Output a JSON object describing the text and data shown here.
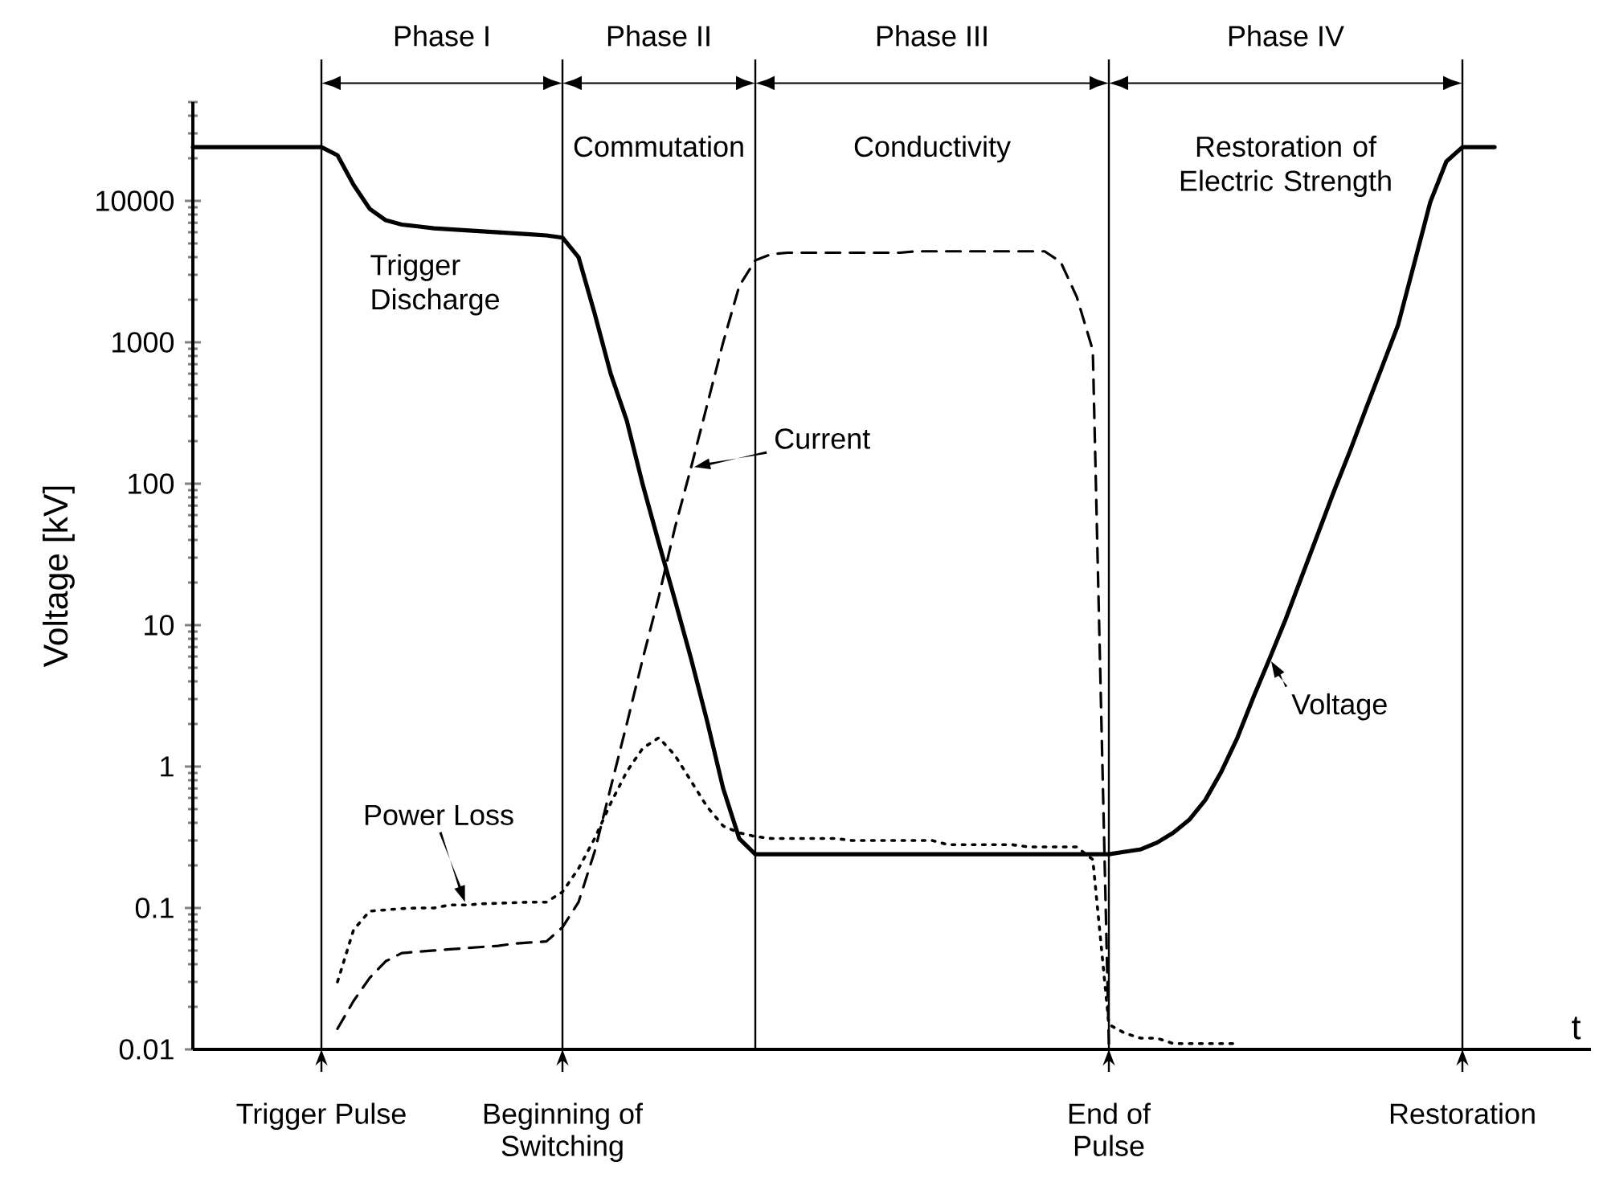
{
  "chart_data": {
    "type": "line",
    "ylabel": "Voltage [kV]",
    "xlabel": "t",
    "log": "y",
    "ylim": [
      0.01,
      50000
    ],
    "yticks": [
      0.01,
      0.1,
      1,
      10,
      100,
      1000,
      10000
    ],
    "categories": [
      null,
      null,
      null,
      null,
      null,
      null,
      null,
      null,
      "Trigger Pulse",
      null,
      null,
      null,
      null,
      null,
      null,
      null,
      null,
      null,
      null,
      null,
      null,
      null,
      null,
      "Beginning of Switching",
      null,
      null,
      null,
      null,
      null,
      null,
      null,
      null,
      null,
      null,
      null,
      null,
      null,
      null,
      null,
      null,
      null,
      null,
      null,
      null,
      null,
      null,
      null,
      null,
      null,
      null,
      null,
      null,
      null,
      null,
      null,
      null,
      null,
      "End of Pulse",
      null,
      null,
      null,
      null,
      null,
      null,
      null,
      null,
      null,
      null,
      null,
      null,
      null,
      null,
      null,
      null,
      null,
      null,
      null,
      null,
      null,
      "Restoration",
      null,
      null,
      null,
      null,
      null,
      null,
      null,
      null
    ],
    "annotations": [
      "Phase I",
      "Phase II",
      "Phase III",
      "Phase IV",
      "Commutation",
      "Conductivity",
      "Restoration of Electric Strength",
      "Trigger Discharge"
    ],
    "series": [
      {
        "name": "Voltage",
        "color": "#000000",
        "line_style": "solid",
        "values": [
          24000,
          24000,
          24000,
          24000,
          24000,
          24000,
          24000,
          24000,
          24000,
          21000,
          13000,
          8800,
          7300,
          6800,
          6600,
          6400,
          6300,
          6200,
          6100,
          6000,
          5900,
          5800,
          5700,
          5500,
          4000,
          1600,
          600,
          280,
          98,
          38,
          15,
          5.8,
          2.1,
          0.7,
          0.31,
          0.24,
          0.24,
          0.24,
          0.24,
          0.24,
          0.24,
          0.24,
          0.24,
          0.24,
          0.24,
          0.24,
          0.24,
          0.24,
          0.24,
          0.24,
          0.24,
          0.24,
          0.24,
          0.24,
          0.24,
          0.24,
          0.24,
          0.24,
          0.25,
          0.26,
          0.29,
          0.34,
          0.42,
          0.58,
          0.92,
          1.6,
          3.1,
          5.8,
          11,
          22,
          44,
          88,
          170,
          340,
          670,
          1330,
          3600,
          9800,
          19000,
          24000,
          24000,
          24000,
          null,
          null,
          null,
          null,
          null,
          null
        ]
      },
      {
        "name": "Current",
        "color": "#000000",
        "line_style": "dashed",
        "values": [
          null,
          null,
          null,
          null,
          null,
          null,
          null,
          null,
          null,
          0.014,
          0.022,
          0.032,
          0.042,
          0.048,
          0.049,
          0.05,
          0.051,
          0.052,
          0.053,
          0.054,
          0.056,
          0.057,
          0.058,
          0.073,
          0.11,
          0.25,
          0.71,
          2,
          5.8,
          16,
          49,
          130,
          360,
          1000,
          2500,
          3800,
          4200,
          4300,
          4300,
          4300,
          4300,
          4300,
          4300,
          4300,
          4300,
          4400,
          4400,
          4400,
          4400,
          4400,
          4400,
          4400,
          4400,
          4400,
          3700,
          2100,
          880,
          0.011,
          null,
          null,
          null,
          null,
          null,
          null,
          null,
          null,
          null,
          null,
          null,
          null,
          null,
          null,
          null,
          null,
          null,
          null,
          null,
          null,
          null,
          null,
          null,
          null,
          null,
          null,
          null,
          null,
          null,
          null
        ]
      },
      {
        "name": "Power Loss",
        "color": "#000000",
        "line_style": "dotted",
        "values": [
          null,
          null,
          null,
          null,
          null,
          null,
          null,
          null,
          null,
          0.03,
          0.07,
          0.095,
          0.097,
          0.099,
          0.1,
          0.1,
          0.105,
          0.105,
          0.107,
          0.108,
          0.109,
          0.11,
          0.11,
          0.13,
          0.19,
          0.31,
          0.55,
          0.92,
          1.35,
          1.6,
          1.2,
          0.79,
          0.52,
          0.38,
          0.34,
          0.32,
          0.31,
          0.31,
          0.31,
          0.31,
          0.31,
          0.3,
          0.3,
          0.3,
          0.3,
          0.3,
          0.3,
          0.28,
          0.28,
          0.28,
          0.28,
          0.28,
          0.27,
          0.27,
          0.27,
          0.27,
          0.22,
          0.015,
          0.013,
          0.012,
          0.012,
          0.011,
          0.011,
          0.011,
          0.011,
          0.011,
          null,
          null,
          null,
          null,
          null,
          null,
          null,
          null,
          null,
          null,
          null,
          null,
          null,
          null,
          null,
          null,
          null,
          null,
          null,
          null,
          null,
          null
        ]
      }
    ]
  }
}
